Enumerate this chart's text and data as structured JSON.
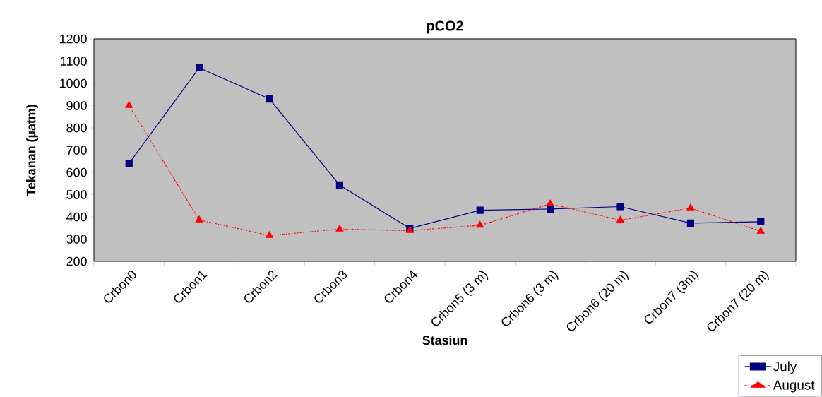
{
  "chart_data": {
    "type": "line",
    "title": "pCO2",
    "xlabel": "Stasiun",
    "ylabel": "Tekanan (µatm)",
    "categories": [
      "Crbon0",
      "Crbon1",
      "Crbon2",
      "Crbon3",
      "Crbon4",
      "Crbon5 (3 m)",
      "Crbon6 (3 m)",
      "Crbon6 (20 m)",
      "Crbon7 (3m)",
      "Crbon7 (20 m)"
    ],
    "series": [
      {
        "name": "July",
        "color": "#000080",
        "marker": "square",
        "line_style": "solid",
        "values": [
          640,
          1070,
          930,
          543,
          348,
          430,
          435,
          446,
          372,
          378
        ]
      },
      {
        "name": "August",
        "color": "#ff0000",
        "marker": "triangle",
        "line_style": "dashed",
        "values": [
          900,
          386,
          316,
          345,
          338,
          362,
          458,
          385,
          440,
          335
        ]
      }
    ],
    "ylim": [
      200,
      1200
    ],
    "yticks": [
      200,
      300,
      400,
      500,
      600,
      700,
      800,
      900,
      1000,
      1100,
      1200
    ],
    "grid": false,
    "legend": "bottom right"
  }
}
